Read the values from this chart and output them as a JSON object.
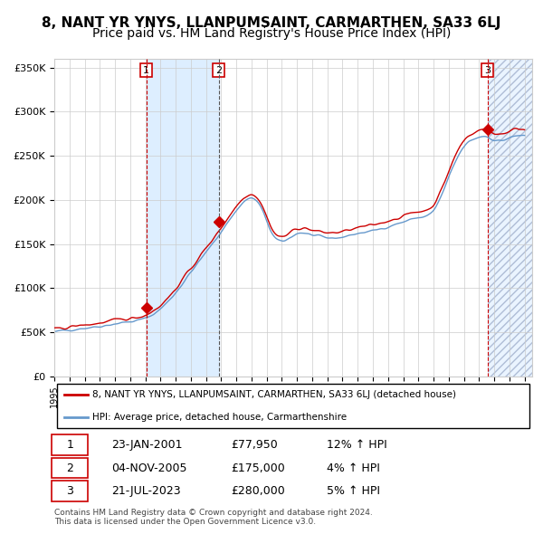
{
  "title": "8, NANT YR YNYS, LLANPUMSAINT, CARMARTHEN, SA33 6LJ",
  "subtitle": "Price paid vs. HM Land Registry's House Price Index (HPI)",
  "ylim": [
    0,
    360000
  ],
  "yticks": [
    0,
    50000,
    100000,
    150000,
    200000,
    250000,
    300000,
    350000
  ],
  "ytick_labels": [
    "£0",
    "£50K",
    "£100K",
    "£150K",
    "£200K",
    "£250K",
    "£300K",
    "£350K"
  ],
  "sale_prices": [
    77950,
    175000,
    280000
  ],
  "sale_labels": [
    "1",
    "2",
    "3"
  ],
  "sale_pct": [
    "12%",
    "4%",
    "5%"
  ],
  "sale_date_labels": [
    "23-JAN-2001",
    "04-NOV-2005",
    "21-JUL-2023"
  ],
  "sale_years": [
    2001.063,
    2005.842,
    2023.553
  ],
  "hpi_color": "#6699cc",
  "price_color": "#cc0000",
  "shaded_region_color": "#ddeeff",
  "legend_label_red": "8, NANT YR YNYS, LLANPUMSAINT, CARMARTHEN, SA33 6LJ (detached house)",
  "legend_label_blue": "HPI: Average price, detached house, Carmarthenshire",
  "footer": "Contains HM Land Registry data © Crown copyright and database right 2024.\nThis data is licensed under the Open Government Licence v3.0.",
  "background_color": "#ffffff",
  "grid_color": "#cccccc",
  "title_fontsize": 11,
  "subtitle_fontsize": 10,
  "hpi_anchors_x": [
    1995.0,
    1996.5,
    1998.0,
    1999.5,
    2001.0,
    2002.5,
    2004.0,
    2005.5,
    2007.0,
    2008.5,
    2009.5,
    2011.0,
    2012.0,
    2013.0,
    2014.0,
    2015.0,
    2016.0,
    2017.0,
    2018.0,
    2019.0,
    2020.0,
    2021.0,
    2022.0,
    2022.8,
    2023.5,
    2024.0,
    2025.0,
    2026.0
  ],
  "hpi_anchors_y": [
    50000,
    54000,
    57000,
    61000,
    66000,
    85000,
    118000,
    152000,
    188000,
    195000,
    158000,
    162000,
    160000,
    157000,
    158000,
    162000,
    165000,
    170000,
    175000,
    180000,
    188000,
    225000,
    260000,
    270000,
    272000,
    268000,
    270000,
    272000
  ]
}
